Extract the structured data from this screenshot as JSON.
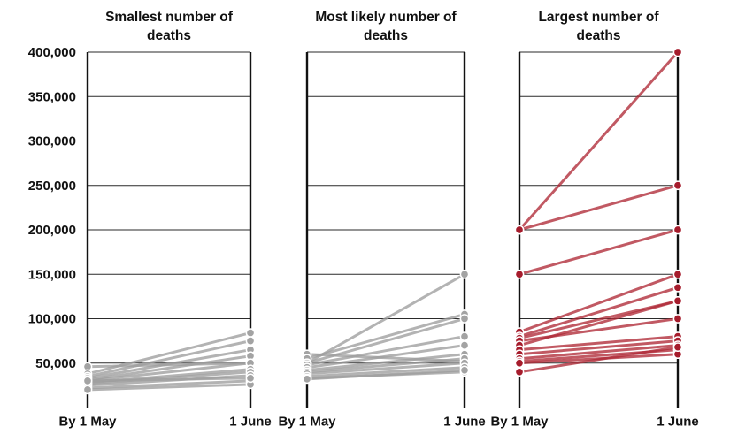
{
  "chart_data": {
    "type": "line",
    "y_ticks": [
      {
        "value": 50000,
        "label": "50,000"
      },
      {
        "value": 100000,
        "label": "100,000"
      },
      {
        "value": 150000,
        "label": "150,000"
      },
      {
        "value": 200000,
        "label": "200,000"
      },
      {
        "value": 250000,
        "label": "250,000"
      },
      {
        "value": 300000,
        "label": "300,000"
      },
      {
        "value": 350000,
        "label": "350,000"
      },
      {
        "value": 400000,
        "label": "400,000"
      }
    ],
    "ylim": [
      0,
      400000
    ],
    "x_labels": [
      "By 1 May",
      "1 June"
    ],
    "grid": true,
    "panels": [
      {
        "title_lines": [
          "Smallest number of",
          "deaths"
        ],
        "color": "#9e9e9e",
        "point_fill": "#a3a3a3",
        "lines": [
          [
            46000,
            50000
          ],
          [
            38000,
            84000
          ],
          [
            35000,
            75000
          ],
          [
            33000,
            65000
          ],
          [
            31000,
            58000
          ],
          [
            30000,
            50000
          ],
          [
            28000,
            43000
          ],
          [
            27000,
            40000
          ],
          [
            25000,
            36000
          ],
          [
            22000,
            30000
          ],
          [
            20000,
            26000
          ],
          [
            30000,
            33000
          ]
        ]
      },
      {
        "title_lines": [
          "Most likely number of",
          "deaths"
        ],
        "color": "#9e9e9e",
        "point_fill": "#a3a3a3",
        "lines": [
          [
            60000,
            52000
          ],
          [
            55000,
            105000
          ],
          [
            50000,
            150000
          ],
          [
            50000,
            100000
          ],
          [
            48000,
            80000
          ],
          [
            45000,
            70000
          ],
          [
            42000,
            60000
          ],
          [
            40000,
            55000
          ],
          [
            38000,
            50000
          ],
          [
            35000,
            45000
          ],
          [
            33000,
            40000
          ],
          [
            32000,
            42000
          ]
        ]
      },
      {
        "title_lines": [
          "Largest number of",
          "deaths"
        ],
        "color": "#b02a37",
        "point_fill": "#a61c2c",
        "lines": [
          [
            200000,
            400000
          ],
          [
            200000,
            250000
          ],
          [
            150000,
            200000
          ],
          [
            85000,
            150000
          ],
          [
            80000,
            135000
          ],
          [
            78000,
            120000
          ],
          [
            75000,
            100000
          ],
          [
            70000,
            120000
          ],
          [
            65000,
            80000
          ],
          [
            60000,
            75000
          ],
          [
            55000,
            70000
          ],
          [
            52000,
            65000
          ],
          [
            50000,
            60000
          ],
          [
            40000,
            68000
          ]
        ]
      }
    ]
  }
}
